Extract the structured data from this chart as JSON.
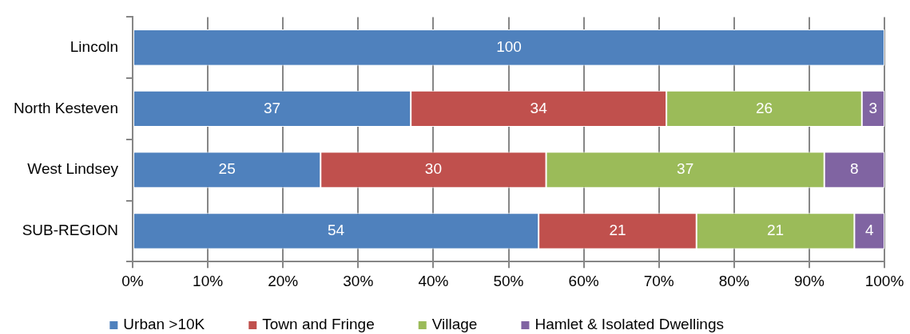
{
  "chart_data": {
    "type": "bar",
    "orientation": "horizontal",
    "stacked": true,
    "categories": [
      "Lincoln",
      "North Kesteven",
      "West Lindsey",
      "SUB-REGION"
    ],
    "series": [
      {
        "name": "Urban >10K",
        "color": "#4f81bd",
        "values": [
          100,
          37,
          25,
          54
        ]
      },
      {
        "name": "Town and Fringe",
        "color": "#c0504d",
        "values": [
          null,
          34,
          30,
          21
        ]
      },
      {
        "name": "Village",
        "color": "#9bbb59",
        "values": [
          null,
          26,
          37,
          21
        ]
      },
      {
        "name": "Hamlet & Isolated Dwellings",
        "color": "#8064a2",
        "values": [
          null,
          3,
          8,
          4
        ]
      }
    ],
    "xlim": [
      0,
      100
    ],
    "xticks": [
      {
        "value": 0,
        "label": "0%"
      },
      {
        "value": 10,
        "label": "10%"
      },
      {
        "value": 20,
        "label": "20%"
      },
      {
        "value": 30,
        "label": "30%"
      },
      {
        "value": 40,
        "label": "40%"
      },
      {
        "value": 50,
        "label": "50%"
      },
      {
        "value": 60,
        "label": "60%"
      },
      {
        "value": 70,
        "label": "70%"
      },
      {
        "value": 80,
        "label": "80%"
      },
      {
        "value": 90,
        "label": "90%"
      },
      {
        "value": 100,
        "label": "100%"
      }
    ],
    "grid": "x",
    "legend": "bottom",
    "data_labels": true
  }
}
